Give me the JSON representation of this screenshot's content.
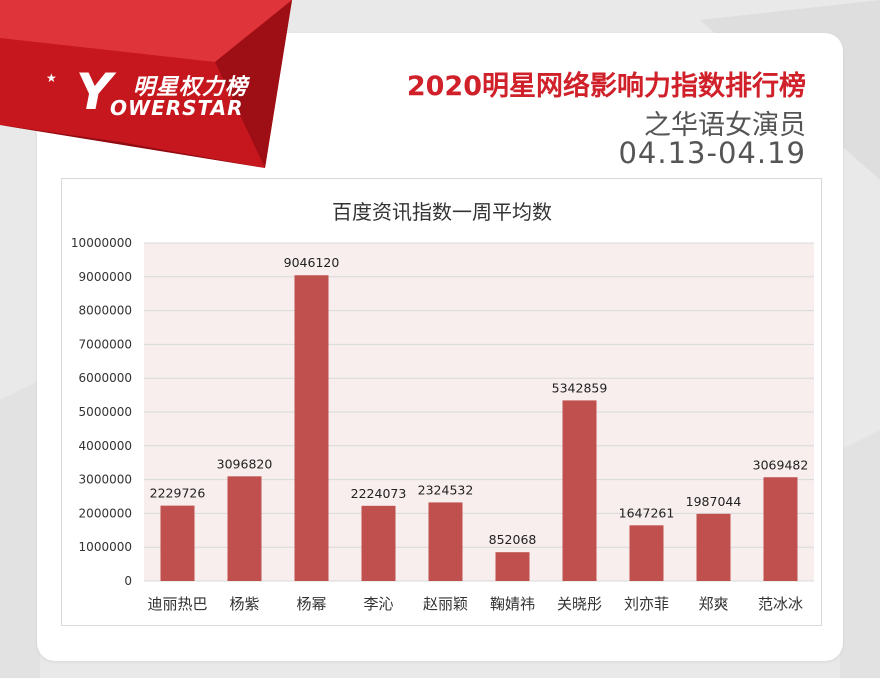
{
  "brand": {
    "name_cn": "明星权力榜",
    "name_en": "OWERSTAR",
    "mark": "Y"
  },
  "header": {
    "title": "2020明星网络影响力指数排行榜",
    "subtitle": "之华语女演员",
    "date_range": "04.13-04.19"
  },
  "colors": {
    "accent": "#d0202a",
    "bar": "#c0504d",
    "plot_bg": "#f8eeee"
  },
  "chart_data": {
    "type": "bar",
    "title": "百度资讯指数一周平均数",
    "xlabel": "",
    "ylabel": "",
    "categories": [
      "迪丽热巴",
      "杨紫",
      "杨幂",
      "李沁",
      "赵丽颖",
      "鞠婧祎",
      "关晓彤",
      "刘亦菲",
      "郑爽",
      "范冰冰"
    ],
    "values": [
      2229726,
      3096820,
      9046120,
      2224073,
      2324532,
      852068,
      5342859,
      1647261,
      1987044,
      3069482
    ],
    "ylim": [
      0,
      10000000
    ],
    "yticks": [
      0,
      1000000,
      2000000,
      3000000,
      4000000,
      5000000,
      6000000,
      7000000,
      8000000,
      9000000,
      10000000
    ],
    "data_labels": true,
    "grid": true,
    "legend": "none"
  }
}
